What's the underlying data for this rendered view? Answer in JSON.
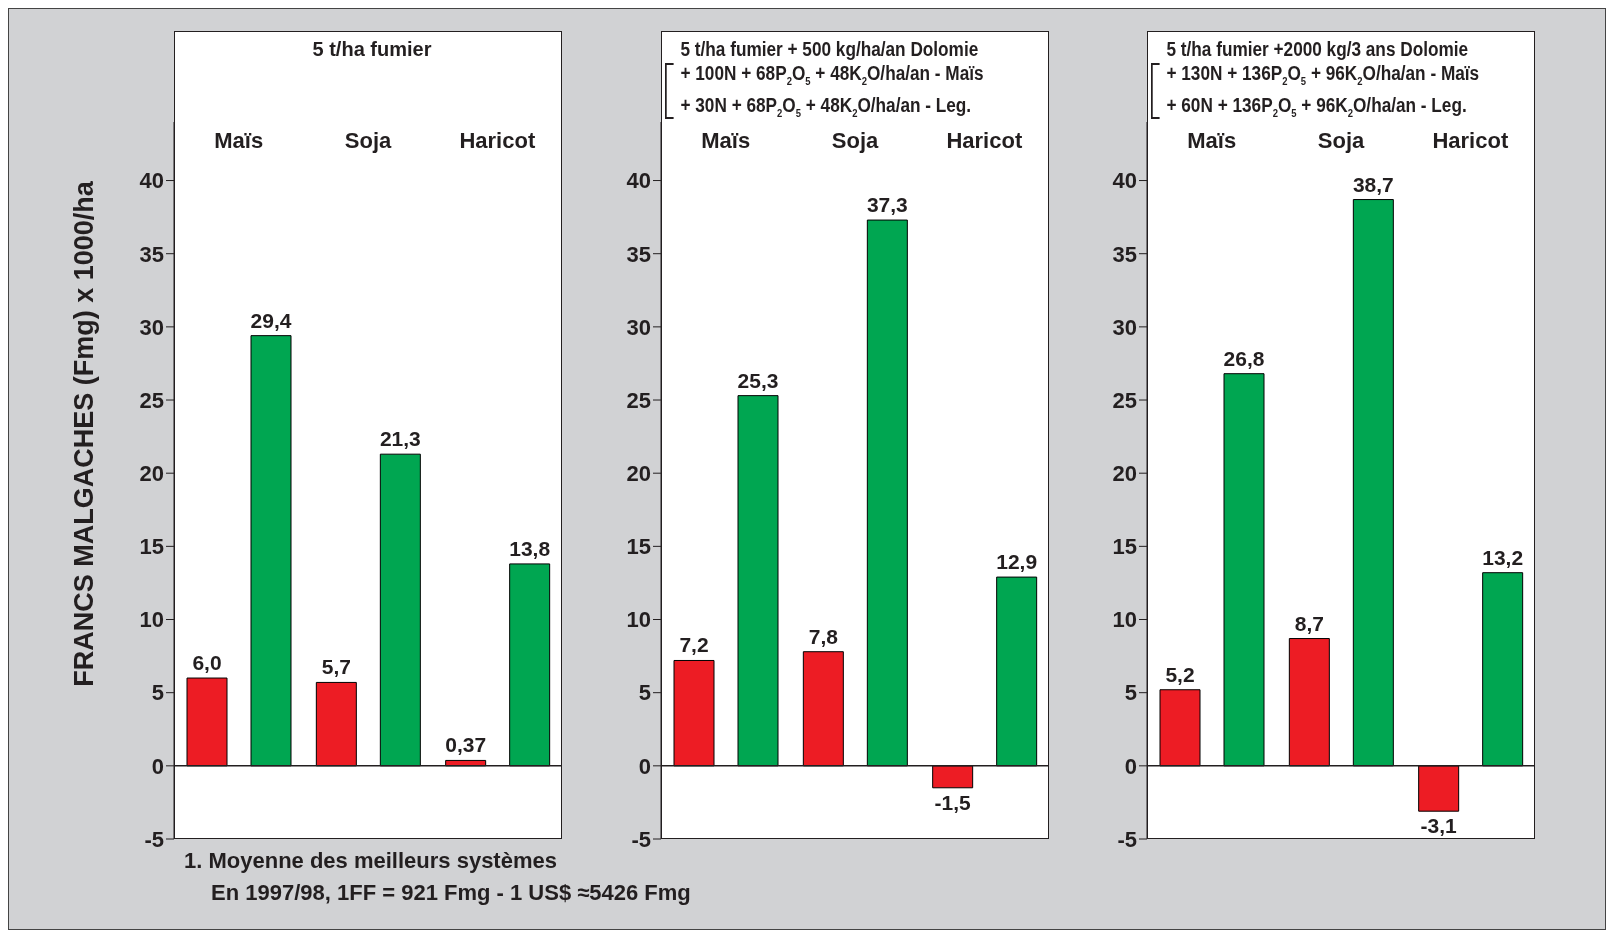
{
  "chart_data": [
    {
      "type": "bar",
      "title": "5 t/ha fumier",
      "ylabel": "FRANCS MALGACHES (Fmg) x 1000/ha",
      "categories": [
        "Maïs",
        "Soja",
        "Haricot"
      ],
      "series": [
        {
          "color": "#ed1c24",
          "values": [
            6.0,
            5.7,
            0.37
          ],
          "value_labels": [
            "6,0",
            "5,7",
            "0,37"
          ]
        },
        {
          "color": "#00a651",
          "values": [
            29.4,
            21.3,
            13.8
          ],
          "value_labels": [
            "29,4",
            "21,3",
            "13,8"
          ]
        }
      ],
      "ylim": [
        -5,
        44
      ],
      "yticks": [
        -5,
        0,
        5,
        10,
        15,
        20,
        25,
        30,
        35,
        40
      ],
      "legend": false,
      "ref_lines": [
        {
          "axis": "y",
          "value": 0
        }
      ],
      "annotations": [
        "1. Moyenne des meilleurs systèmes",
        "En 1997/98, 1FF = 921 Fmg - 1 US$ ≈5426 Fmg"
      ]
    },
    {
      "type": "bar",
      "title": "5 t/ha fumier + 500 kg/ha/an Dolomie",
      "subtitle": "+ 100N + 68P$_{2}$O$_{5}$ + 48K$_{2}$O/ha/an - Maïs\n+ 30N + 68P$_{2}$O$_{5}$ + 48K$_{2}$O/ha/an - Leg.",
      "categories": [
        "Maïs",
        "Soja",
        "Haricot"
      ],
      "series": [
        {
          "color": "#ed1c24",
          "values": [
            7.2,
            7.8,
            -1.5
          ],
          "value_labels": [
            "7,2",
            "7,8",
            "-1,5"
          ]
        },
        {
          "color": "#00a651",
          "values": [
            25.3,
            37.3,
            12.9
          ],
          "value_labels": [
            "25,3",
            "37,3",
            "12,9"
          ]
        }
      ],
      "ylim": [
        -5,
        44
      ],
      "yticks": [
        -5,
        0,
        5,
        10,
        15,
        20,
        25,
        30,
        35,
        40
      ],
      "legend": false,
      "ref_lines": [
        {
          "axis": "y",
          "value": 0
        }
      ]
    },
    {
      "type": "bar",
      "title": "5 t/ha fumier +2000 kg/3 ans Dolomie",
      "subtitle": "+ 130N + 136P$_{2}$O$_{5}$ + 96K$_{2}$O/ha/an - Maïs\n+ 60N + 136P$_{2}$O$_{5}$ + 96K$_{2}$O/ha/an - Leg.",
      "categories": [
        "Maïs",
        "Soja",
        "Haricot"
      ],
      "series": [
        {
          "color": "#ed1c24",
          "values": [
            5.2,
            8.7,
            -3.1
          ],
          "value_labels": [
            "5,2",
            "8,7",
            "-3,1"
          ]
        },
        {
          "color": "#00a651",
          "values": [
            26.8,
            38.7,
            13.2
          ],
          "value_labels": [
            "26,8",
            "38,7",
            "13,2"
          ]
        }
      ],
      "ylim": [
        -5,
        44
      ],
      "yticks": [
        -5,
        0,
        5,
        10,
        15,
        20,
        25,
        30,
        35,
        40
      ],
      "legend": false,
      "ref_lines": [
        {
          "axis": "y",
          "value": 0
        }
      ]
    }
  ]
}
